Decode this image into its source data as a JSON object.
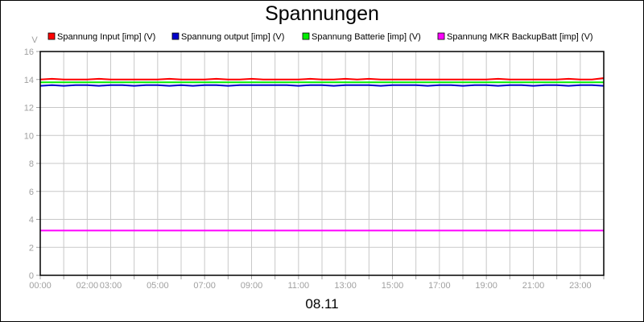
{
  "chart_data": {
    "type": "line",
    "title": "Spannungen",
    "xlabel": "08.11",
    "ylabel": "V",
    "ylim": [
      0,
      16
    ],
    "yticks": [
      "0",
      "2",
      "4",
      "6",
      "8",
      "10",
      "12",
      "14",
      "16"
    ],
    "xlim": [
      0,
      24
    ],
    "xticks": [
      {
        "h": 0,
        "label": "00:00"
      },
      {
        "h": 2,
        "label": "02:00"
      },
      {
        "h": 3,
        "label": "03:00"
      },
      {
        "h": 5,
        "label": "05:00"
      },
      {
        "h": 7,
        "label": "07:00"
      },
      {
        "h": 9,
        "label": "09:00"
      },
      {
        "h": 11,
        "label": "11:00"
      },
      {
        "h": 13,
        "label": "13:00"
      },
      {
        "h": 15,
        "label": "15:00"
      },
      {
        "h": 17,
        "label": "17:00"
      },
      {
        "h": 19,
        "label": "19:00"
      },
      {
        "h": 21,
        "label": "21:00"
      },
      {
        "h": 23,
        "label": "23:00"
      }
    ],
    "grid": true,
    "legend_position": "top",
    "x": [
      0,
      0.5,
      1,
      1.5,
      2,
      2.5,
      3,
      3.5,
      4,
      4.5,
      5,
      5.5,
      6,
      6.5,
      7,
      7.5,
      8,
      8.5,
      9,
      9.5,
      10,
      10.5,
      11,
      11.5,
      12,
      12.5,
      13,
      13.5,
      14,
      14.5,
      15,
      15.5,
      16,
      16.5,
      17,
      17.5,
      18,
      18.5,
      19,
      19.5,
      20,
      20.5,
      21,
      21.5,
      22,
      22.5,
      23,
      23.5,
      24
    ],
    "series": [
      {
        "name": "Spannung Input [imp] (V)",
        "color": "#ff0000",
        "values": [
          14.0,
          14.05,
          14.0,
          14.0,
          14.0,
          14.05,
          14.0,
          14.0,
          14.0,
          14.0,
          14.0,
          14.05,
          14.0,
          14.0,
          14.0,
          14.05,
          14.0,
          14.0,
          14.05,
          14.0,
          14.0,
          14.0,
          14.0,
          14.05,
          14.0,
          14.0,
          14.05,
          14.0,
          14.05,
          14.0,
          14.0,
          14.0,
          14.0,
          14.0,
          14.0,
          14.0,
          14.0,
          14.0,
          14.0,
          14.05,
          14.0,
          14.0,
          14.0,
          14.0,
          14.0,
          14.05,
          14.0,
          14.0,
          14.1
        ]
      },
      {
        "name": "Spannung output [imp] (V)",
        "color": "#0000cc",
        "values": [
          13.55,
          13.6,
          13.55,
          13.6,
          13.6,
          13.55,
          13.6,
          13.6,
          13.55,
          13.6,
          13.6,
          13.55,
          13.6,
          13.55,
          13.6,
          13.6,
          13.55,
          13.6,
          13.6,
          13.6,
          13.6,
          13.6,
          13.55,
          13.6,
          13.6,
          13.55,
          13.6,
          13.6,
          13.6,
          13.55,
          13.6,
          13.6,
          13.6,
          13.55,
          13.6,
          13.6,
          13.55,
          13.6,
          13.6,
          13.55,
          13.6,
          13.6,
          13.55,
          13.6,
          13.6,
          13.55,
          13.6,
          13.6,
          13.55
        ]
      },
      {
        "name": "Spannung Batterie [imp] (V)",
        "color": "#00ee00",
        "values": [
          13.8,
          13.8,
          13.8,
          13.8,
          13.8,
          13.8,
          13.8,
          13.8,
          13.8,
          13.8,
          13.8,
          13.8,
          13.8,
          13.8,
          13.8,
          13.8,
          13.8,
          13.8,
          13.8,
          13.8,
          13.8,
          13.8,
          13.8,
          13.8,
          13.8,
          13.8,
          13.8,
          13.8,
          13.8,
          13.8,
          13.8,
          13.8,
          13.8,
          13.8,
          13.8,
          13.8,
          13.8,
          13.8,
          13.8,
          13.8,
          13.8,
          13.8,
          13.8,
          13.8,
          13.8,
          13.8,
          13.8,
          13.8,
          13.8
        ]
      },
      {
        "name": "Spannung MKR BackupBatt [imp] (V)",
        "color": "#ff00ff",
        "values": [
          3.2,
          3.2,
          3.2,
          3.2,
          3.2,
          3.2,
          3.2,
          3.2,
          3.2,
          3.2,
          3.2,
          3.2,
          3.2,
          3.2,
          3.2,
          3.2,
          3.2,
          3.2,
          3.2,
          3.2,
          3.2,
          3.2,
          3.2,
          3.2,
          3.2,
          3.2,
          3.2,
          3.2,
          3.2,
          3.2,
          3.2,
          3.2,
          3.2,
          3.2,
          3.2,
          3.2,
          3.2,
          3.2,
          3.2,
          3.2,
          3.2,
          3.2,
          3.2,
          3.2,
          3.2,
          3.2,
          3.2,
          3.2,
          3.2
        ]
      }
    ]
  }
}
